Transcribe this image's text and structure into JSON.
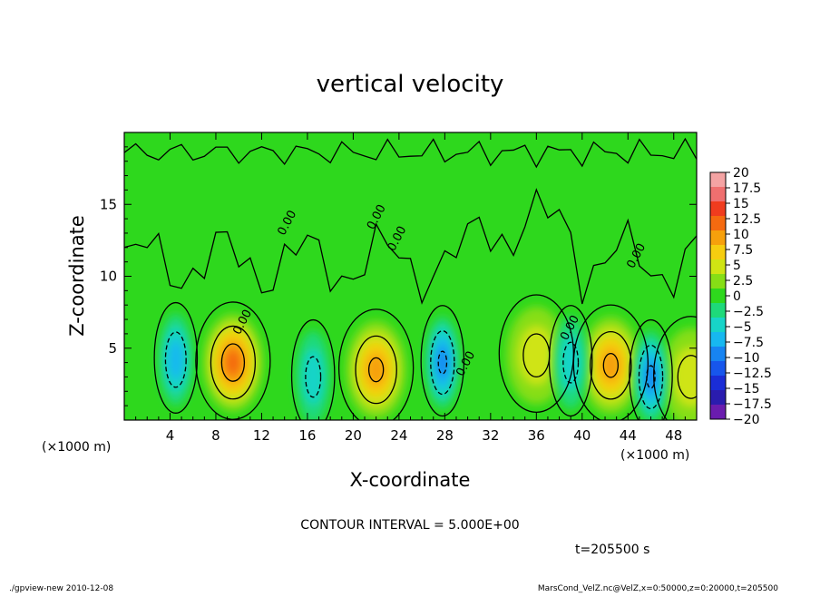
{
  "chart_data": {
    "type": "heatmap",
    "title": "vertical velocity",
    "xlabel": "X-coordinate",
    "ylabel": "Z-coordinate",
    "x_unit_label": "(×1000 m)",
    "x_ticks": [
      4,
      8,
      12,
      16,
      20,
      24,
      28,
      32,
      36,
      40,
      44,
      48
    ],
    "y_ticks": [
      5,
      10,
      15
    ],
    "xlim": [
      0,
      50
    ],
    "ylim": [
      0,
      20
    ],
    "contour_interval_text": "CONTOUR INTERVAL = 5.000E+00",
    "time_text": "t=205500 s",
    "contour_labels": [
      {
        "text": "0.00",
        "x": 14.5,
        "z": 13.6
      },
      {
        "text": "0.00",
        "x": 22.3,
        "z": 14.0
      },
      {
        "text": "0.00",
        "x": 24.1,
        "z": 12.5
      },
      {
        "text": "0.00",
        "x": 10.6,
        "z": 6.7
      },
      {
        "text": "0.00",
        "x": 30.1,
        "z": 3.8
      },
      {
        "text": "0.00",
        "x": 39.2,
        "z": 6.3
      },
      {
        "text": "0.00",
        "x": 45.0,
        "z": 11.3
      }
    ],
    "colorbar": {
      "levels": [
        "20",
        "17.5",
        "15",
        "12.5",
        "10",
        "7.5",
        "5",
        "2.5",
        "0",
        "−2.5",
        "−5",
        "−7.5",
        "−10",
        "−12.5",
        "−15",
        "−17.5",
        "−20"
      ],
      "colors": [
        "#f4a3a3",
        "#ef6f6f",
        "#f03c1e",
        "#f56a10",
        "#f6a00c",
        "#f6cd10",
        "#cfe413",
        "#86de16",
        "#2ed81d",
        "#1ed97a",
        "#17d4c8",
        "#17b8f0",
        "#1784f2",
        "#1756ec",
        "#1a2dd6",
        "#2a1cae",
        "#6a1cae"
      ]
    },
    "features": [
      {
        "sign": "positive",
        "x": 9.5,
        "z": 4.0,
        "peak": 12.5
      },
      {
        "sign": "positive",
        "x": 22.0,
        "z": 3.5,
        "peak": 10.0
      },
      {
        "sign": "positive",
        "x": 42.5,
        "z": 3.8,
        "peak": 11.0
      },
      {
        "sign": "positive",
        "x": 36.0,
        "z": 4.5,
        "peak": 5.0
      },
      {
        "sign": "positive",
        "x": 49.5,
        "z": 3.0,
        "peak": 6.0
      },
      {
        "sign": "negative",
        "x": 4.5,
        "z": 4.2,
        "peak": -7.5
      },
      {
        "sign": "negative",
        "x": 27.8,
        "z": 4.0,
        "peak": -10.0
      },
      {
        "sign": "negative",
        "x": 46.0,
        "z": 3.0,
        "peak": -10.0
      },
      {
        "sign": "negative",
        "x": 39.0,
        "z": 4.0,
        "peak": -5.0
      },
      {
        "sign": "negative",
        "x": 16.5,
        "z": 3.0,
        "peak": -5.0
      }
    ]
  },
  "footer": {
    "left": "./gpview-new   2010-12-08",
    "right": "MarsCond_VelZ.nc@VelZ,x=0:50000,z=0:20000,t=205500"
  }
}
